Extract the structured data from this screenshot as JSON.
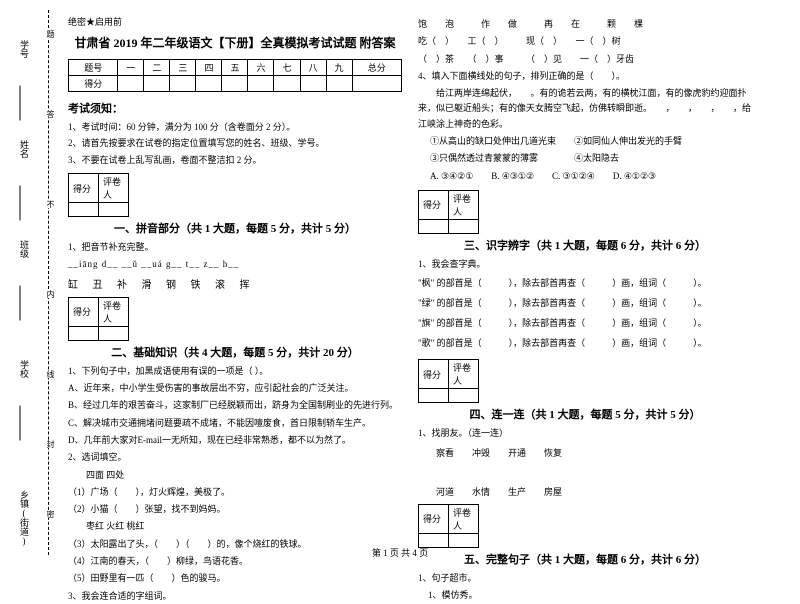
{
  "meta": {
    "secret": "绝密★启用前",
    "title": "甘肃省 2019 年二年级语文【下册】全真模拟考试试题 附答案",
    "footer": "第 1 页 共 4 页"
  },
  "scoreTable": {
    "cols": [
      "题号",
      "一",
      "二",
      "三",
      "四",
      "五",
      "六",
      "七",
      "八",
      "九",
      "总分"
    ],
    "row2": "得分"
  },
  "instructions": {
    "title": "考试须知：",
    "items": [
      "1、考试时间：60 分钟，满分为 100 分（含卷面分 2 分）。",
      "2、请首先按要求在试卷的指定位置填写您的姓名、班级、学号。",
      "3、不要在试卷上乱写乱画，卷面不整洁扣 2 分。"
    ]
  },
  "scorebox_labels": {
    "a": "得分",
    "b": "评卷人"
  },
  "sec1": {
    "title": "一、拼音部分（共 1 大题，每题 5 分，共计 5 分）",
    "q1": "1、把音节补充完整。",
    "pinyin": "__iāng    d__    __ǔ    __uá   g__    t__    z__    h__",
    "chars": "缸     丑     补     滑    钢    铁    滚    挥"
  },
  "sec2": {
    "title": "二、基础知识（共 4 大题，每题 5 分，共计 20 分）",
    "q1": "1、下列句子中，加黑成语使用有误的一项是（      ）。",
    "q1a": "A、近年来，中小学生受伤害的事故层出不穷，应引起社会的广泛关注。",
    "q1b": "B、经过几年的艰苦奋斗，这家制厂已经脱颖而出，跻身为全国制刷业的先进行列。",
    "q1c": "C、解决城市交通拥堵问题要疏不成堵，不能因噎废食，首日限制轿车生产。",
    "q1d": "D、几年前大家对E-mail一无所知，现在已经非常熟悉，都不以为然了。",
    "q2": "2、选词填空。",
    "q2_a1": "四面     四处",
    "q2_a2": "（1）广场（　　），灯火辉煌，美极了。",
    "q2_a3": "（2）小猫（　　）张望，找不到妈妈。",
    "q2_b1": "枣红     火红     桃红",
    "q2_b2": "（3）太阳露出了头，（　　）（　　）的，像个烧红的铁球。",
    "q2_b3": "（4）江南的春天，（　　）柳绿，鸟语花香。",
    "q2_b4": "（5）田野里有一匹（　　）色的骏马。",
    "q3": "3、我会连合适的字组词。"
  },
  "rcol": {
    "words_r1a": "饱　　泡　　　作　　做　　　再　　在　　　颗　　棵",
    "words_r1b": "吃（　）　　工（　）　　　现（　）　　一（　）树",
    "words_r1c": "（　）茶　　（　）事　　　（　）见　　一（　）牙齿",
    "q4": "4、填入下面横线处的句子，排列正确的是（　　）。",
    "q4_body": "　　给江两岸连绵起伏，　　。有的诡若云两，有的横枕江面，有的像虎豹约迎面扑来，似已躯近船头；有的像天女腾空飞起，仿佛转瞬即逝。　　，　　，　　，　　，给江峡涂上神奇的色彩。",
    "q4_o1": "①从高山的缺口处伸出几道光束　　②如同仙人伸出发光的手臂",
    "q4_o2": "③只偶然透过青蒙蒙的薄雾　　　　④太阳隐去",
    "q4_ans": "A. ③④②①　　B. ④③①②　　C. ③①②④　　D. ④①②③"
  },
  "sec3": {
    "title": "三、识字辨字（共 1 大题，每题 6 分，共计 6 分）",
    "q1": "1、我会查字典。",
    "lines": [
      "\"枫\" 的部首是（　　　），除去部首再查（　　　）画，组词（　　　）。",
      "\"绿\" 的部首是（　　　），除去部首再查（　　　）画，组词（　　　）。",
      "\"旗\" 的部首是（　　　），除去部首再查（　　　）画，组词（　　　）。",
      "\"歌\" 的部首是（　　　），除去部首再查（　　　）画，组词（　　　）。"
    ]
  },
  "sec4": {
    "title": "四、连一连（共 1 大题，每题 5 分，共计 5 分）",
    "q1": "1、找朋友。（连一连）",
    "row1": "察看　　冲毁　　开通　　恢复",
    "row2": "河道　　水情　　生产　　房屋"
  },
  "sec5": {
    "title": "五、完整句子（共 1 大题，每题 6 分，共计 6 分）",
    "q1": "1、句子超市。",
    "q1a": "1、模仿秀。"
  },
  "sideband": {
    "labels": [
      "学号",
      "姓名",
      "班级",
      "学校",
      "乡镇(街道)"
    ],
    "foldtags": [
      "题",
      "答",
      "不",
      "内",
      "线",
      "封",
      "密"
    ]
  }
}
